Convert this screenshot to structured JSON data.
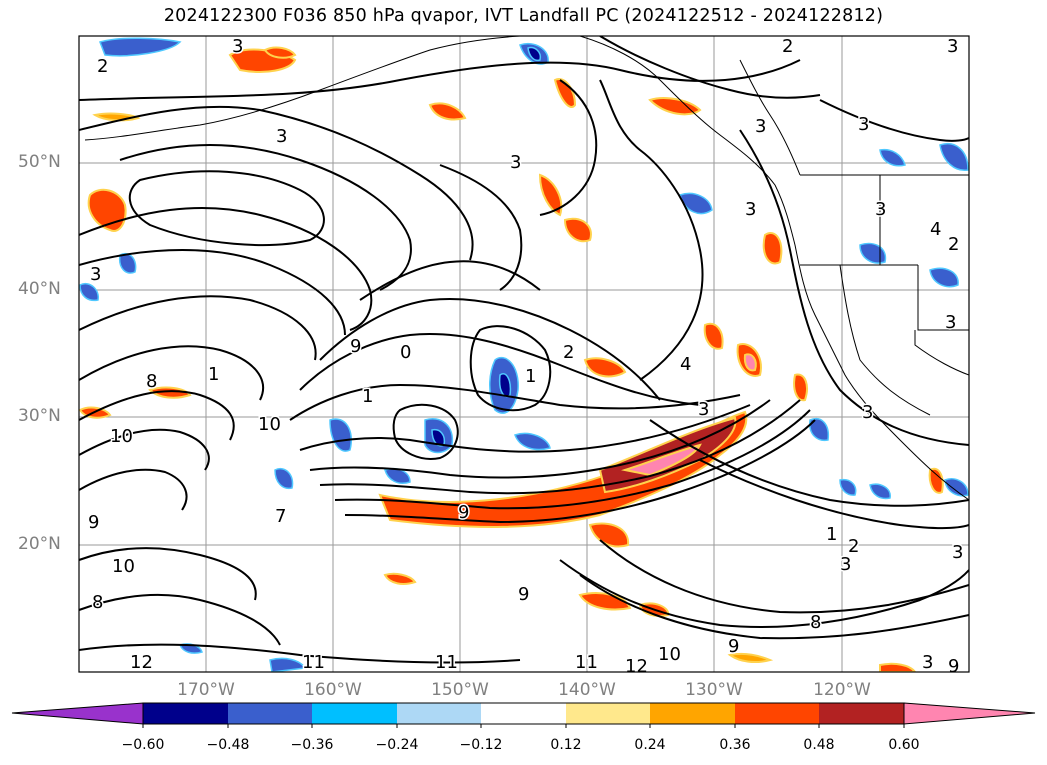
{
  "title": "2024122300 F036 850 hPa qvapor, IVT Landfall PC (2024122512 - 2024122812)",
  "lat_labels": [
    "50°N",
    "40°N",
    "30°N",
    "20°N"
  ],
  "lon_labels": [
    "170°W",
    "160°W",
    "150°W",
    "140°W",
    "130°W",
    "120°W"
  ],
  "colorbar": {
    "tick_labels": [
      "−0.60",
      "−0.48",
      "−0.36",
      "−0.24",
      "−0.12",
      "0.12",
      "0.24",
      "0.36",
      "0.48",
      "0.60"
    ],
    "colors": [
      "#9932CC",
      "#00008B",
      "#3A5FCD",
      "#00BFFF",
      "#ADD8F5",
      "#FFFFFF",
      "#FFE88C",
      "#FFA500",
      "#FF4500",
      "#B22222",
      "#FF85B0"
    ]
  },
  "contour_labels": [
    "2",
    "3",
    "2",
    "3",
    "3",
    "3",
    "3",
    "3",
    "3",
    "2",
    "3",
    "3",
    "3",
    "2",
    "1",
    "4",
    "3",
    "1",
    "0",
    "9",
    "8",
    "1",
    "10",
    "10",
    "9",
    "9",
    "7",
    "8",
    "10",
    "11",
    "11",
    "12",
    "11",
    "12",
    "10",
    "9",
    "8",
    "9",
    "1",
    "2",
    "3",
    "3",
    "3",
    "4",
    "3",
    "9"
  ],
  "fill_colors": {
    "pos_light": "#FFE88C",
    "pos_mid": "#FFA500",
    "pos_strong": "#FF4500",
    "pos_dark": "#B22222",
    "pos_max": "#FF85B0",
    "neg_light": "#ADD8F5",
    "neg_mid": "#00BFFF",
    "neg_strong": "#3A5FCD",
    "neg_dark": "#00008B"
  }
}
